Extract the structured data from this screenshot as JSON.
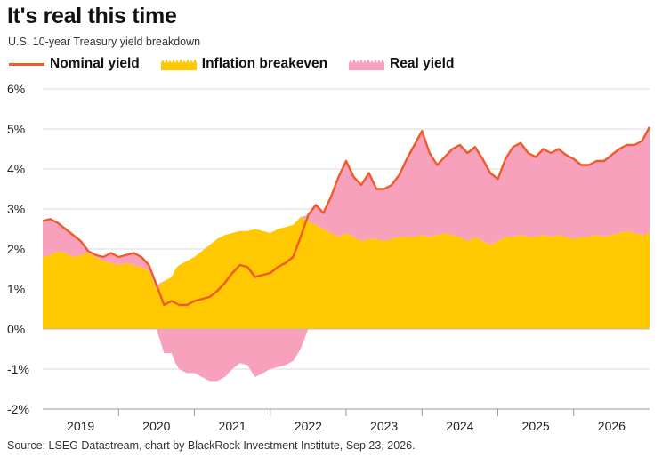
{
  "title": "It's real this time",
  "subtitle": "U.S. 10-year Treasury yield breakdown",
  "legend": [
    {
      "label": "Nominal yield",
      "color": "#F05A28"
    },
    {
      "label": "Inflation breakeven",
      "color": "#FFC800"
    },
    {
      "label": "Real yield",
      "color": "#F7A1BC"
    }
  ],
  "source": "Source: LSEG Datastream, chart by BlackRock Investment Institute, Sep 23, 2026.",
  "chart_data": {
    "type": "area",
    "title": "It's real this time",
    "xlabel": "",
    "ylabel": "",
    "ylim": [
      -2,
      6
    ],
    "xlim": [
      2018.5,
      2026.5
    ],
    "yticks": [
      "6%",
      "5%",
      "4%",
      "3%",
      "2%",
      "1%",
      "0%",
      "-1%",
      "-2%"
    ],
    "ytick_values": [
      6,
      5,
      4,
      3,
      2,
      1,
      0,
      -1,
      -2
    ],
    "xticks": [
      "2019",
      "2020",
      "2021",
      "2022",
      "2023",
      "2024",
      "2025",
      "2026"
    ],
    "grid": true,
    "legend_position": "top",
    "x": [
      2018.5,
      2018.6,
      2018.7,
      2018.8,
      2018.9,
      2019.0,
      2019.1,
      2019.2,
      2019.3,
      2019.4,
      2019.5,
      2019.6,
      2019.7,
      2019.8,
      2019.9,
      2020.0,
      2020.1,
      2020.2,
      2020.25,
      2020.3,
      2020.4,
      2020.5,
      2020.6,
      2020.7,
      2020.8,
      2020.9,
      2021.0,
      2021.1,
      2021.2,
      2021.3,
      2021.4,
      2021.5,
      2021.6,
      2021.7,
      2021.8,
      2021.9,
      2022.0,
      2022.1,
      2022.2,
      2022.3,
      2022.4,
      2022.5,
      2022.6,
      2022.7,
      2022.8,
      2022.9,
      2023.0,
      2023.1,
      2023.2,
      2023.3,
      2023.4,
      2023.5,
      2023.6,
      2023.7,
      2023.8,
      2023.9,
      2024.0,
      2024.1,
      2024.2,
      2024.3,
      2024.4,
      2024.5,
      2024.6,
      2024.7,
      2024.8,
      2024.9,
      2025.0,
      2025.1,
      2025.2,
      2025.3,
      2025.4,
      2025.5,
      2025.6,
      2025.7,
      2025.8,
      2025.9,
      2026.0,
      2026.1,
      2026.2,
      2026.3,
      2026.4,
      2026.5
    ],
    "series": [
      {
        "name": "Nominal yield",
        "type": "line",
        "color": "#F05A28",
        "values": [
          2.7,
          2.75,
          2.65,
          2.5,
          2.35,
          2.2,
          1.95,
          1.85,
          1.8,
          1.9,
          1.8,
          1.85,
          1.9,
          1.8,
          1.6,
          1.1,
          0.6,
          0.7,
          0.65,
          0.6,
          0.6,
          0.7,
          0.75,
          0.8,
          0.95,
          1.15,
          1.4,
          1.6,
          1.55,
          1.3,
          1.35,
          1.4,
          1.55,
          1.65,
          1.8,
          2.3,
          2.85,
          3.1,
          2.9,
          3.3,
          3.8,
          4.2,
          3.8,
          3.6,
          3.9,
          3.5,
          3.5,
          3.6,
          3.85,
          4.25,
          4.6,
          4.95,
          4.4,
          4.1,
          4.3,
          4.5,
          4.6,
          4.4,
          4.55,
          4.25,
          3.9,
          3.75,
          4.25,
          4.55,
          4.65,
          4.4,
          4.3,
          4.5,
          4.4,
          4.5,
          4.35,
          4.25,
          4.1,
          4.1,
          4.2,
          4.2,
          4.35,
          4.5,
          4.6,
          4.6,
          4.7,
          5.05
        ]
      },
      {
        "name": "Inflation breakeven",
        "type": "area",
        "color": "#FFC800",
        "values": [
          1.8,
          1.85,
          1.95,
          1.9,
          1.8,
          1.85,
          1.9,
          1.8,
          1.7,
          1.65,
          1.6,
          1.65,
          1.6,
          1.55,
          1.45,
          1.0,
          1.2,
          1.3,
          1.5,
          1.6,
          1.7,
          1.8,
          1.95,
          2.1,
          2.25,
          2.35,
          2.4,
          2.45,
          2.45,
          2.5,
          2.45,
          2.4,
          2.5,
          2.55,
          2.6,
          2.8,
          2.7,
          2.6,
          2.5,
          2.4,
          2.3,
          2.4,
          2.3,
          2.2,
          2.25,
          2.25,
          2.2,
          2.25,
          2.3,
          2.3,
          2.3,
          2.35,
          2.3,
          2.35,
          2.4,
          2.35,
          2.3,
          2.2,
          2.3,
          2.2,
          2.1,
          2.2,
          2.3,
          2.3,
          2.35,
          2.3,
          2.3,
          2.35,
          2.3,
          2.35,
          2.3,
          2.25,
          2.3,
          2.3,
          2.35,
          2.3,
          2.35,
          2.4,
          2.45,
          2.4,
          2.35,
          2.4
        ]
      },
      {
        "name": "Real yield",
        "type": "area",
        "color": "#F7A1BC",
        "values": [
          0.9,
          0.9,
          0.7,
          0.6,
          0.55,
          0.35,
          0.05,
          0.05,
          0.1,
          0.25,
          0.2,
          0.2,
          0.3,
          0.25,
          0.15,
          0.1,
          -0.6,
          -0.6,
          -0.85,
          -1.0,
          -1.1,
          -1.1,
          -1.2,
          -1.3,
          -1.3,
          -1.2,
          -1.0,
          -0.85,
          -0.9,
          -1.2,
          -1.1,
          -1.0,
          -0.95,
          -0.9,
          -0.8,
          -0.5,
          0.15,
          0.5,
          0.4,
          0.9,
          1.5,
          1.8,
          1.5,
          1.4,
          1.65,
          1.25,
          1.3,
          1.35,
          1.55,
          1.95,
          2.3,
          2.6,
          2.1,
          1.75,
          1.9,
          2.15,
          2.3,
          2.2,
          2.25,
          2.05,
          1.8,
          1.55,
          1.95,
          2.25,
          2.3,
          2.1,
          2.0,
          2.15,
          2.1,
          2.15,
          2.05,
          2.0,
          1.8,
          1.8,
          1.85,
          1.9,
          2.0,
          2.1,
          2.15,
          2.2,
          2.35,
          2.65
        ]
      }
    ]
  }
}
